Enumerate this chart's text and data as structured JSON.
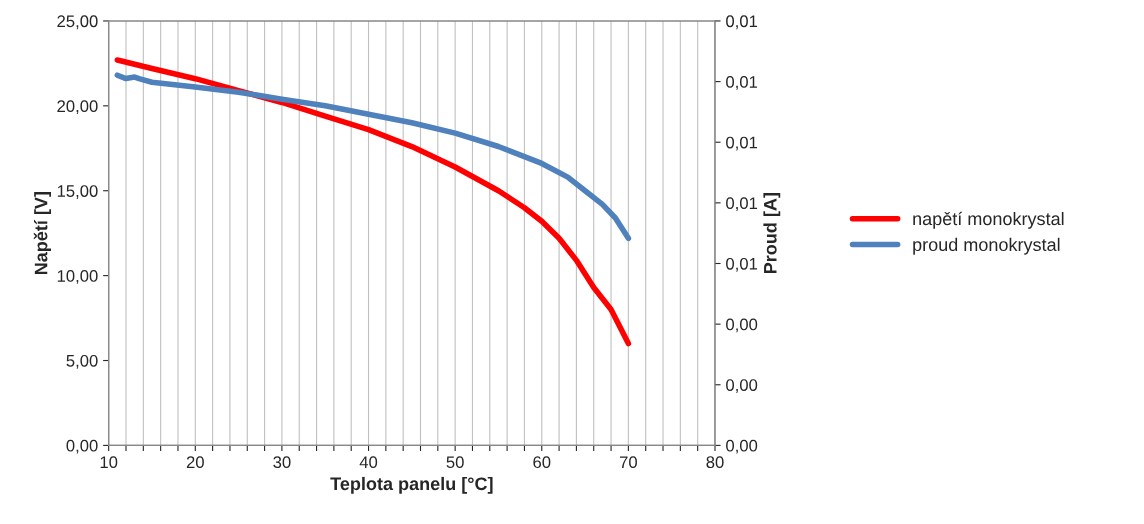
{
  "chart_data": {
    "type": "line",
    "xlabel": "Teplota panelu [°C]",
    "ylabel": "Napětí [V]",
    "y2label": "Proud [A]",
    "xlim": [
      10,
      80
    ],
    "xticks": [
      10,
      {
        "value": 12,
        "label": null
      },
      {
        "value": 14,
        "label": null
      },
      {
        "value": 16,
        "label": null
      },
      {
        "value": 18,
        "label": null
      },
      20,
      {
        "value": 22,
        "label": null
      },
      {
        "value": 24,
        "label": null
      },
      {
        "value": 26,
        "label": null
      },
      {
        "value": 28,
        "label": null
      },
      30,
      {
        "value": 32,
        "label": null
      },
      {
        "value": 34,
        "label": null
      },
      {
        "value": 36,
        "label": null
      },
      {
        "value": 38,
        "label": null
      },
      40,
      {
        "value": 42,
        "label": null
      },
      {
        "value": 44,
        "label": null
      },
      {
        "value": 46,
        "label": null
      },
      {
        "value": 48,
        "label": null
      },
      50,
      {
        "value": 52,
        "label": null
      },
      {
        "value": 54,
        "label": null
      },
      {
        "value": 56,
        "label": null
      },
      {
        "value": 58,
        "label": null
      },
      60,
      {
        "value": 62,
        "label": null
      },
      {
        "value": 64,
        "label": null
      },
      {
        "value": 66,
        "label": null
      },
      {
        "value": 68,
        "label": null
      },
      70,
      {
        "value": 72,
        "label": null
      },
      {
        "value": 74,
        "label": null
      },
      {
        "value": 76,
        "label": null
      },
      {
        "value": 78,
        "label": null
      },
      80
    ],
    "ylim": [
      0,
      25
    ],
    "yticks": [
      {
        "value": 0,
        "label": "0,00"
      },
      {
        "value": 5,
        "label": "5,00"
      },
      {
        "value": 10,
        "label": "10,00"
      },
      {
        "value": 15,
        "label": "15,00"
      },
      {
        "value": 20,
        "label": "20,00"
      },
      {
        "value": 25,
        "label": "25,00"
      }
    ],
    "y2lim": [
      0,
      0.014
    ],
    "y2ticks": [
      {
        "value": 0,
        "label": "0,00"
      },
      {
        "value": 0.002,
        "label": "0,00"
      },
      {
        "value": 0.004,
        "label": "0,00"
      },
      {
        "value": 0.006,
        "label": "0,01"
      },
      {
        "value": 0.008,
        "label": "0,01"
      },
      {
        "value": 0.01,
        "label": "0,01"
      },
      {
        "value": 0.012,
        "label": "0,01"
      },
      {
        "value": 0.014,
        "label": "0,01"
      }
    ],
    "grid": "x",
    "legend": "right",
    "marker": "none",
    "line_style": "solid",
    "series": [
      {
        "name": "napětí monokrystal",
        "color": "#ff0000",
        "x": [
          11,
          15,
          20,
          25,
          30,
          35,
          40,
          45,
          50,
          55,
          58,
          60,
          62,
          64,
          66,
          68,
          69,
          70
        ],
        "values": [
          22.7,
          22.2,
          21.6,
          20.9,
          20.2,
          19.4,
          18.6,
          17.6,
          16.4,
          15.0,
          14.0,
          13.2,
          12.2,
          10.9,
          9.3,
          8.0,
          7.0,
          6.0
        ]
      },
      {
        "name": "proud monokrystal",
        "color": "#4f81bd",
        "axis": "y2",
        "x": [
          11,
          12,
          13,
          13.5,
          15,
          20,
          25,
          30,
          35,
          40,
          45,
          50,
          55,
          60,
          63,
          65,
          67,
          68.5,
          70
        ],
        "values": [
          0.01221,
          0.0121,
          0.01215,
          0.0121,
          0.01198,
          0.01182,
          0.01165,
          0.01142,
          0.0112,
          0.01092,
          0.01064,
          0.0103,
          0.00986,
          0.0093,
          0.00885,
          0.0084,
          0.00795,
          0.0075,
          0.00683
        ]
      }
    ]
  }
}
